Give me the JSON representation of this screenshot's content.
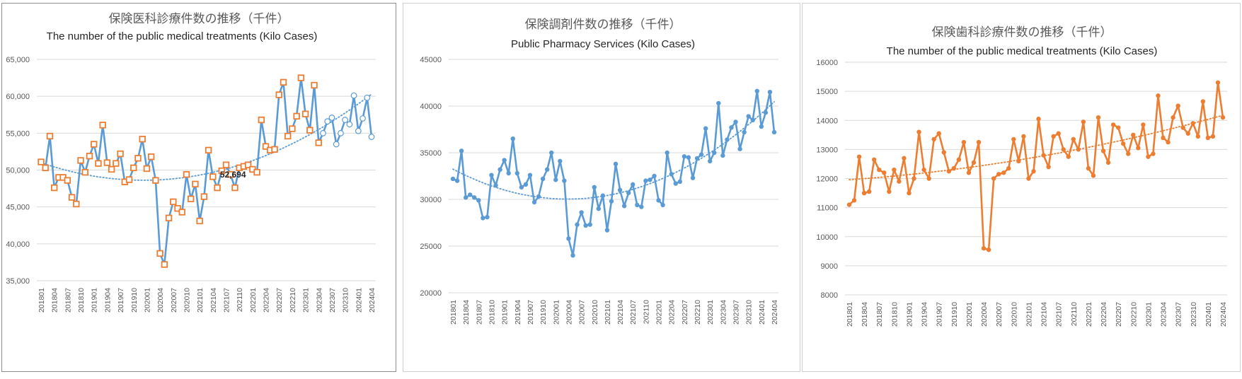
{
  "chart_data": [
    {
      "type": "line",
      "title": "保険医科診療件数の推移（千件）",
      "subtitle": "The number of the public medical treatments (Kilo Cases)",
      "ylim": [
        35000,
        65000
      ],
      "ytick_labels": [
        "35,000",
        "40,000",
        "45,000",
        "50,000",
        "55,000",
        "60,000",
        "65,000"
      ],
      "x_tick_labels": [
        "201801",
        "201804",
        "201807",
        "201810",
        "201901",
        "201904",
        "201907",
        "201910",
        "202001",
        "202004",
        "202007",
        "202010",
        "202101",
        "202104",
        "202107",
        "202110",
        "202201",
        "202204",
        "202207",
        "202210",
        "202301",
        "202304",
        "202307",
        "202310",
        "202401",
        "202404"
      ],
      "annotation": {
        "text": "52,694",
        "index": 39
      },
      "trendline": "polynomial",
      "grid": true,
      "legend": "none",
      "series": [
        {
          "color": "#5b9bd5",
          "marker_color": "#ed7d31",
          "values": [
            51100,
            50300,
            54600,
            47600,
            49000,
            49000,
            48600,
            46300,
            45400,
            51300,
            49700,
            51900,
            53500,
            50900,
            56100,
            51000,
            50100,
            50900,
            52200,
            48400,
            48700,
            50300,
            51600,
            54200,
            50200,
            51800,
            48600,
            38700,
            37200,
            43500,
            45700,
            44800,
            44300,
            49400,
            46100,
            48100,
            43100,
            46400,
            52694,
            49100,
            47600,
            49900,
            50700,
            49400,
            47600,
            50300,
            50500,
            50700,
            50100,
            49700,
            56800,
            53200,
            52700,
            52800,
            60200,
            61900,
            54600,
            55600,
            57300,
            62500,
            57600,
            55400,
            61500,
            53700,
            55000,
            56600,
            57100,
            53500,
            55000,
            56800,
            56200,
            60100,
            55300,
            57000,
            59800,
            54500
          ],
          "marker_open_from": 64
        }
      ]
    },
    {
      "type": "line",
      "title": "保険調剤件数の推移（千件）",
      "subtitle": "Public Pharmacy Services (Kilo Cases)",
      "ylim": [
        20000,
        45000
      ],
      "ytick_labels": [
        "20000",
        "25000",
        "30000",
        "35000",
        "40000",
        "45000"
      ],
      "x_tick_labels": [
        "201801",
        "201804",
        "201807",
        "201810",
        "201901",
        "201904",
        "201907",
        "201910",
        "202001",
        "202004",
        "202007",
        "202010",
        "202101",
        "202104",
        "202107",
        "202110",
        "202201",
        "202204",
        "202207",
        "202210",
        "202301",
        "202304",
        "202307",
        "202310",
        "202401",
        "202404"
      ],
      "trendline": "polynomial",
      "grid": true,
      "legend": "none",
      "series": [
        {
          "color": "#5b9bd5",
          "marker_color": "#5b9bd5",
          "values": [
            32200,
            32000,
            35200,
            30200,
            30500,
            30200,
            29900,
            28000,
            28100,
            32600,
            31500,
            33200,
            34200,
            32800,
            36500,
            32800,
            31300,
            31600,
            32600,
            29700,
            30300,
            32200,
            33200,
            35000,
            32100,
            34100,
            32000,
            25800,
            24000,
            27300,
            28600,
            27200,
            27300,
            31300,
            29000,
            30400,
            26700,
            29800,
            33800,
            31000,
            29300,
            30700,
            31600,
            29400,
            29200,
            32000,
            32100,
            32500,
            29900,
            29400,
            35000,
            32700,
            31700,
            31900,
            34600,
            34500,
            32300,
            34400,
            34800,
            37600,
            34100,
            35000,
            40300,
            34700,
            36400,
            37700,
            38300,
            35400,
            37200,
            38900,
            38500,
            41600,
            37800,
            39300,
            41500,
            37200
          ]
        }
      ]
    },
    {
      "type": "line",
      "title": "保険歯科診療件数の推移（千件）",
      "subtitle": "The number of the public medical treatments (Kilo Cases)",
      "ylim": [
        8000,
        16000
      ],
      "ytick_labels": [
        "8000",
        "9000",
        "10000",
        "11000",
        "12000",
        "13000",
        "14000",
        "15000",
        "16000"
      ],
      "x_tick_labels": [
        "201801",
        "201804",
        "201807",
        "201810",
        "201901",
        "201904",
        "201907",
        "201910",
        "202001",
        "202004",
        "202007",
        "202010",
        "202101",
        "202104",
        "202107",
        "202110",
        "202201",
        "202204",
        "202207",
        "202210",
        "202301",
        "202304",
        "202307",
        "202310",
        "202401",
        "202404"
      ],
      "trendline": "polynomial",
      "grid": true,
      "legend": "none",
      "series": [
        {
          "color": "#ed7d31",
          "marker_color": "#ed7d31",
          "values": [
            11100,
            11250,
            12750,
            11500,
            11550,
            12650,
            12300,
            12200,
            11550,
            12300,
            11900,
            12700,
            11500,
            12000,
            13600,
            12300,
            12000,
            13350,
            13550,
            12900,
            12250,
            12350,
            12650,
            13250,
            12200,
            12550,
            13250,
            9600,
            9550,
            12000,
            12150,
            12200,
            12350,
            13350,
            12600,
            13450,
            12000,
            12250,
            14050,
            12800,
            12400,
            13450,
            13550,
            13000,
            12750,
            13350,
            13000,
            13950,
            12350,
            12100,
            14100,
            12950,
            12550,
            13850,
            13750,
            13200,
            12850,
            13500,
            13050,
            13850,
            12750,
            12850,
            14850,
            13400,
            13250,
            14100,
            14500,
            13750,
            13550,
            13900,
            13450,
            14650,
            13400,
            13450,
            15300,
            14100
          ]
        }
      ]
    }
  ]
}
